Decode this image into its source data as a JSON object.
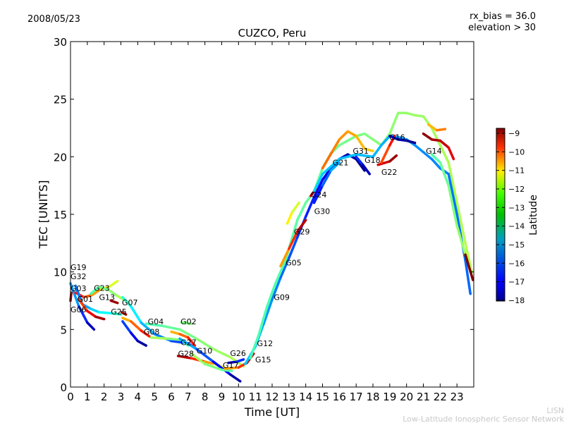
{
  "header": {
    "date": "2008/05/23",
    "rx_bias": "rx_bias = 36.0",
    "elevation": "elevation > 30"
  },
  "footer": {
    "org_short": "LISN",
    "org_full": "Low-Latitude Ionospheric Sensor Network"
  },
  "chart_data": {
    "type": "scatter",
    "title": "CUZCO, Peru",
    "xlabel": "Time [UT]",
    "ylabel": "TEC [UNITS]",
    "xlim": [
      0,
      24
    ],
    "ylim": [
      0,
      30
    ],
    "xticks": [
      0,
      1,
      2,
      3,
      4,
      5,
      6,
      7,
      8,
      9,
      10,
      11,
      12,
      13,
      14,
      15,
      16,
      17,
      18,
      19,
      20,
      21,
      22,
      23
    ],
    "yticks": [
      0,
      5,
      10,
      15,
      20,
      25,
      30
    ],
    "grid": false,
    "colorbar": {
      "label": "Latitude",
      "range": [
        -18,
        -9
      ],
      "ticks": [
        -9,
        -10,
        -11,
        -12,
        -13,
        -14,
        -15,
        -16,
        -17,
        -18
      ],
      "colormap": "jet",
      "placement": "right"
    },
    "tracks": [
      {
        "lat": [
          -15,
          -18
        ],
        "points": [
          [
            0,
            9.0
          ],
          [
            0.5,
            7.0
          ],
          [
            1.0,
            5.6
          ],
          [
            1.4,
            5.0
          ]
        ]
      },
      {
        "lat": [
          -9,
          -9.5
        ],
        "points": [
          [
            0,
            7.5
          ],
          [
            0.05,
            8.2
          ]
        ]
      },
      {
        "lat": [
          -10,
          -13
        ],
        "points": [
          [
            0.3,
            8.2
          ],
          [
            0.8,
            7.8
          ],
          [
            1.3,
            8.0
          ],
          [
            1.8,
            8.5
          ],
          [
            2.3,
            8.7
          ],
          [
            2.8,
            9.2
          ]
        ]
      },
      {
        "lat": [
          -14,
          -13
        ],
        "points": [
          [
            1.2,
            8.1
          ],
          [
            1.7,
            8.7
          ],
          [
            2.3,
            8.4
          ],
          [
            2.8,
            7.9
          ],
          [
            3.4,
            7.4
          ]
        ]
      },
      {
        "lat": [
          -16,
          -14
        ],
        "points": [
          [
            0.3,
            8.8
          ],
          [
            0.7,
            7.2
          ],
          [
            1.2,
            6.8
          ],
          [
            1.7,
            6.5
          ],
          [
            2.5,
            6.4
          ],
          [
            3.0,
            6.3
          ]
        ]
      },
      {
        "lat": [
          -11,
          -9
        ],
        "points": [
          [
            0.5,
            7.6
          ],
          [
            1.0,
            6.6
          ],
          [
            1.5,
            6.1
          ],
          [
            2.0,
            5.9
          ]
        ]
      },
      {
        "lat": [
          -9,
          -9.5
        ],
        "points": [
          [
            2.4,
            7.5
          ],
          [
            2.8,
            7.3
          ]
        ]
      },
      {
        "lat": [
          -14,
          -17
        ],
        "points": [
          [
            3.1,
            7.8
          ],
          [
            3.6,
            7.0
          ],
          [
            4.2,
            5.6
          ],
          [
            5,
            4.6
          ],
          [
            6,
            4.0
          ],
          [
            7,
            3.8
          ],
          [
            7.5,
            3.3
          ]
        ]
      },
      {
        "lat": [
          -9.5,
          -9
        ],
        "points": [
          [
            3.05,
            6.5
          ],
          [
            3.3,
            6.3
          ]
        ]
      },
      {
        "lat": [
          -16,
          -18
        ],
        "points": [
          [
            3.1,
            5.7
          ],
          [
            3.6,
            4.7
          ],
          [
            4.0,
            4.0
          ],
          [
            4.5,
            3.6
          ]
        ]
      },
      {
        "lat": [
          -12,
          -10
        ],
        "points": [
          [
            3.1,
            6.0
          ],
          [
            3.6,
            5.7
          ],
          [
            4.2,
            4.9
          ],
          [
            4.7,
            4.4
          ]
        ]
      },
      {
        "lat": [
          -14,
          -13
        ],
        "points": [
          [
            4.5,
            5.5
          ],
          [
            5.5,
            5.3
          ],
          [
            6.5,
            5.0
          ],
          [
            7.5,
            4.2
          ],
          [
            8.5,
            3.3
          ],
          [
            9.5,
            2.6
          ],
          [
            10.3,
            1.8
          ]
        ]
      },
      {
        "lat": [
          -13,
          -14
        ],
        "points": [
          [
            4.8,
            4.3
          ],
          [
            5.8,
            4.2
          ],
          [
            6.6,
            4.1
          ],
          [
            7,
            3.6
          ]
        ]
      },
      {
        "lat": [
          -14,
          -13
        ],
        "points": [
          [
            6.6,
            5.6
          ],
          [
            7.2,
            5.5
          ]
        ]
      },
      {
        "lat": [
          -12,
          -10
        ],
        "points": [
          [
            6,
            4.8
          ],
          [
            6.5,
            4.6
          ],
          [
            7,
            4.3
          ],
          [
            7.4,
            3.6
          ]
        ]
      },
      {
        "lat": [
          -9,
          -13
        ],
        "points": [
          [
            6.4,
            2.7
          ],
          [
            7.2,
            2.5
          ],
          [
            8.0,
            2.2
          ],
          [
            8.6,
            2.0
          ],
          [
            9.3,
            1.6
          ]
        ]
      },
      {
        "lat": [
          -15,
          -18
        ],
        "points": [
          [
            6.5,
            4.2
          ],
          [
            7.5,
            3.3
          ],
          [
            8.5,
            2.2
          ],
          [
            9.5,
            1.1
          ],
          [
            10.1,
            0.5
          ]
        ]
      },
      {
        "lat": [
          -13,
          -14
        ],
        "points": [
          [
            7.2,
            2.9
          ],
          [
            8,
            2.0
          ],
          [
            9,
            1.5
          ],
          [
            9.6,
            1.4
          ]
        ]
      },
      {
        "lat": [
          -12,
          -9
        ],
        "points": [
          [
            9.2,
            1.6
          ],
          [
            10,
            1.7
          ],
          [
            10.5,
            2.1
          ],
          [
            10.9,
            2.9
          ]
        ]
      },
      {
        "lat": [
          -18,
          -16
        ],
        "points": [
          [
            9.4,
            2.1
          ],
          [
            9.9,
            2.2
          ],
          [
            10.3,
            2.4
          ]
        ]
      },
      {
        "lat": [
          -15,
          -18
        ],
        "points": [
          [
            10.4,
            2.0
          ],
          [
            11,
            3.5
          ],
          [
            11.5,
            5.5
          ],
          [
            12,
            7.6
          ],
          [
            12.5,
            9.5
          ],
          [
            13,
            11.2
          ],
          [
            13.5,
            13
          ],
          [
            14,
            14.8
          ],
          [
            14.5,
            16.5
          ],
          [
            15,
            18
          ],
          [
            15.5,
            19
          ],
          [
            16,
            19.8
          ],
          [
            16.5,
            20.2
          ],
          [
            17,
            19.8
          ],
          [
            17.5,
            18.8
          ]
        ]
      },
      {
        "lat": [
          -14,
          -13
        ],
        "points": [
          [
            10.7,
            2.5
          ],
          [
            11.2,
            4.5
          ],
          [
            11.7,
            7
          ],
          [
            12.2,
            9
          ],
          [
            12.8,
            11
          ],
          [
            13.5,
            14.5
          ],
          [
            14,
            16
          ],
          [
            14.5,
            17
          ],
          [
            15,
            19
          ],
          [
            15.5,
            20.3
          ],
          [
            16,
            21
          ],
          [
            16.5,
            21.4
          ],
          [
            17,
            21.8
          ],
          [
            17.5,
            22
          ],
          [
            18,
            21.5
          ],
          [
            18.5,
            21
          ],
          [
            19,
            22
          ],
          [
            19.5,
            23.8
          ],
          [
            20,
            23.8
          ],
          [
            20.5,
            23.6
          ],
          [
            21,
            23.5
          ],
          [
            21.5,
            22.5
          ],
          [
            22,
            21
          ],
          [
            22.5,
            19.5
          ],
          [
            23,
            16
          ],
          [
            23.5,
            12.5
          ],
          [
            23.8,
            10.5
          ]
        ]
      },
      {
        "lat": [
          -12,
          -9
        ],
        "points": [
          [
            12.5,
            10.5
          ],
          [
            13,
            12
          ],
          [
            13.5,
            13.5
          ],
          [
            14,
            14.5
          ]
        ]
      },
      {
        "lat": [
          -12,
          -13
        ],
        "points": [
          [
            12.9,
            14.2
          ],
          [
            13.2,
            15.2
          ],
          [
            13.6,
            16
          ]
        ]
      },
      {
        "lat": [
          -9,
          -10
        ],
        "points": [
          [
            14.3,
            16.6
          ],
          [
            14.6,
            17.2
          ]
        ]
      },
      {
        "lat": [
          -17,
          -15
        ],
        "points": [
          [
            14.5,
            16
          ],
          [
            15,
            17.5
          ],
          [
            15.5,
            18.8
          ],
          [
            16,
            19.5
          ]
        ]
      },
      {
        "lat": [
          -11,
          -12
        ],
        "points": [
          [
            15,
            19
          ],
          [
            15.6,
            20.5
          ],
          [
            16,
            21.5
          ],
          [
            16.5,
            22.2
          ],
          [
            17,
            21.8
          ],
          [
            17.5,
            20.7
          ],
          [
            18,
            20.5
          ]
        ]
      },
      {
        "lat": [
          -15,
          -16
        ],
        "points": [
          [
            14.5,
            17
          ],
          [
            15,
            18.5
          ],
          [
            16,
            19.8
          ],
          [
            17,
            20.2
          ],
          [
            18,
            20
          ],
          [
            18.5,
            21
          ],
          [
            19,
            21.8
          ],
          [
            19.5,
            21.7
          ],
          [
            20,
            21.5
          ],
          [
            20.5,
            21
          ],
          [
            21,
            20.4
          ],
          [
            21.5,
            19.8
          ],
          [
            22,
            19
          ],
          [
            22.5,
            18.5
          ],
          [
            23,
            15
          ],
          [
            23.5,
            11
          ],
          [
            23.8,
            8.1
          ]
        ]
      },
      {
        "lat": [
          -14,
          -13
        ],
        "points": [
          [
            21.5,
            20.2
          ],
          [
            22,
            19.5
          ],
          [
            22.5,
            17.5
          ],
          [
            23,
            14
          ],
          [
            23.5,
            11.5
          ],
          [
            23.9,
            10
          ]
        ]
      },
      {
        "lat": [
          -16,
          -18
        ],
        "points": [
          [
            17,
            20
          ],
          [
            17.4,
            19.3
          ],
          [
            17.8,
            18.5
          ]
        ]
      },
      {
        "lat": [
          -10,
          -9
        ],
        "points": [
          [
            18.3,
            19.3
          ],
          [
            19,
            19.6
          ],
          [
            19.4,
            20.1
          ]
        ]
      },
      {
        "lat": [
          -11,
          -10
        ],
        "points": [
          [
            18.5,
            19.5
          ],
          [
            19,
            21
          ],
          [
            19.3,
            21.8
          ]
        ]
      },
      {
        "lat": [
          -17,
          -18
        ],
        "points": [
          [
            19,
            21.8
          ],
          [
            19.5,
            21.5
          ],
          [
            20,
            21.4
          ],
          [
            20.5,
            21.2
          ]
        ]
      },
      {
        "lat": [
          -9,
          -10
        ],
        "points": [
          [
            21,
            22
          ],
          [
            21.5,
            21.5
          ],
          [
            22,
            21.4
          ],
          [
            22.5,
            20.8
          ],
          [
            22.8,
            19.8
          ]
        ]
      },
      {
        "lat": [
          -12,
          -11
        ],
        "points": [
          [
            21.3,
            22.8
          ],
          [
            21.8,
            22.3
          ],
          [
            22.3,
            22.4
          ]
        ]
      },
      {
        "lat": [
          -9,
          -9
        ],
        "points": [
          [
            23.5,
            11.5
          ],
          [
            23.95,
            9.3
          ]
        ]
      }
    ],
    "labels": [
      {
        "text": "G19",
        "t": 0.0,
        "tec": 10.4
      },
      {
        "text": "G32",
        "t": 0.0,
        "tec": 9.6
      },
      {
        "text": "G03",
        "t": 0.0,
        "tec": 9.3
      },
      {
        "text": "G23",
        "t": 0.3,
        "tec": 8.6
      },
      {
        "text": "G01",
        "t": 0.4,
        "tec": 8.4
      },
      {
        "text": "G06",
        "t": 0.0,
        "tec": 8.2
      },
      {
        "text": "G13",
        "t": 1.7,
        "tec": 7.8
      },
      {
        "text": "G25",
        "t": 2.4,
        "tec": 7.3
      },
      {
        "text": "G07",
        "t": 3.06,
        "tec": 6.6
      },
      {
        "text": "G04",
        "t": 4.6,
        "tec": 5.7
      },
      {
        "text": "G02",
        "t": 6.55,
        "tec": 5.7
      },
      {
        "text": "G08",
        "t": 4.36,
        "tec": 4.8
      },
      {
        "text": "G27",
        "t": 6.55,
        "tec": 3.9
      },
      {
        "text": "G10",
        "t": 7.5,
        "tec": 3.9
      },
      {
        "text": "G28",
        "t": 6.4,
        "tec": 2.9
      },
      {
        "text": "G17",
        "t": 9.06,
        "tec": 1.9
      },
      {
        "text": "G26",
        "t": 9.5,
        "tec": 2.2
      },
      {
        "text": "G15",
        "t": 9.9,
        "tec": 2.4
      },
      {
        "text": "G12",
        "t": 11.1,
        "tec": 3.8
      },
      {
        "text": "G09",
        "t": 12.1,
        "tec": 7.8
      },
      {
        "text": "G05",
        "t": 12.8,
        "tec": 10.8
      },
      {
        "text": "G29",
        "t": 13.3,
        "tec": 13.5
      },
      {
        "text": "G24",
        "t": 14.3,
        "tec": 16.7
      },
      {
        "text": "G30",
        "t": 14.5,
        "tec": 16.0
      },
      {
        "text": "G21",
        "t": 15.6,
        "tec": 19.5
      },
      {
        "text": "G31",
        "t": 16.8,
        "tec": 20.5
      },
      {
        "text": "G18",
        "t": 17.5,
        "tec": 19.7
      },
      {
        "text": "G22",
        "t": 18.5,
        "tec": 19.4
      },
      {
        "text": "G16",
        "t": 18.97,
        "tec": 21.7
      },
      {
        "text": "G14",
        "t": 21.15,
        "tec": 20.5
      }
    ]
  }
}
